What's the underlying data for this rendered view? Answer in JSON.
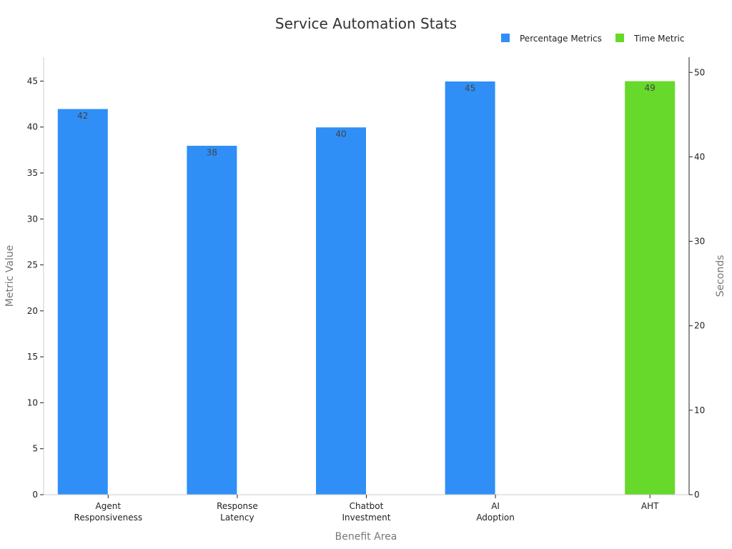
{
  "chart_data": {
    "type": "bar",
    "title": "Service Automation Stats",
    "xlabel": "Benefit Area",
    "ylabel": "Metric Value",
    "y2label": "Seconds",
    "categories": [
      [
        "Agent",
        "Responsiveness"
      ],
      [
        "Response",
        "Latency"
      ],
      [
        "Chatbot",
        "Investment"
      ],
      [
        "AI",
        "Adoption"
      ],
      [
        "AHT"
      ]
    ],
    "series": [
      {
        "name": "Percentage Metrics",
        "color": "#2F8FF7",
        "axis": "left",
        "values": [
          42,
          38,
          40,
          45,
          null
        ]
      },
      {
        "name": "Time Metric",
        "color": "#66D92A",
        "axis": "right",
        "values": [
          null,
          null,
          null,
          null,
          49
        ]
      }
    ],
    "ylim": [
      0,
      47.6
    ],
    "y2lim": [
      0,
      51.8
    ],
    "yticks": [
      0,
      5,
      10,
      15,
      20,
      25,
      30,
      35,
      40,
      45
    ],
    "y2ticks": [
      0,
      10,
      20,
      30,
      40,
      50
    ],
    "grid": false,
    "legend_position": "top-right"
  }
}
